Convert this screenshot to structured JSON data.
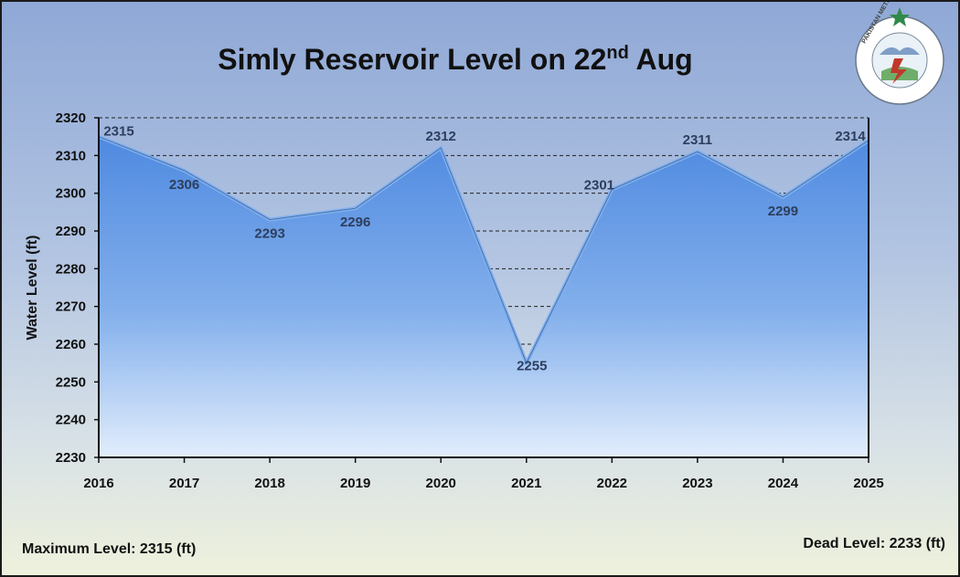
{
  "chart_data": {
    "type": "area",
    "title": "Simly Reservoir Level on 22",
    "title_sup": "nd",
    "title_tail": " Aug",
    "ylabel": "Water Level (ft)",
    "categories": [
      "2016",
      "2017",
      "2018",
      "2019",
      "2020",
      "2021",
      "2022",
      "2023",
      "2024",
      "2025"
    ],
    "values": [
      2315,
      2306,
      2293,
      2296,
      2312,
      2255,
      2301,
      2311,
      2299,
      2314
    ],
    "ylim": [
      2230,
      2320
    ],
    "yticks": [
      2230,
      2240,
      2250,
      2260,
      2270,
      2280,
      2290,
      2300,
      2310,
      2320
    ],
    "grid": "dashed horizontal"
  },
  "footer": {
    "max_level": "Maximum Level: 2315 (ft)",
    "dead_level": "Dead Level: 2233 (ft)"
  },
  "logo": {
    "text": "PAKISTAN METEOROLOGICAL DEPARTMENT",
    "urdu": "پاکستان محکمہ موسمیات",
    "icon": "pmd-emblem"
  },
  "colors": {
    "area_top": "#5a93df",
    "area_bottom": "#d6e6fb",
    "background_top": "#8fa8d6",
    "background_bottom": "#eef1dc",
    "label": "#2d3e5e"
  }
}
